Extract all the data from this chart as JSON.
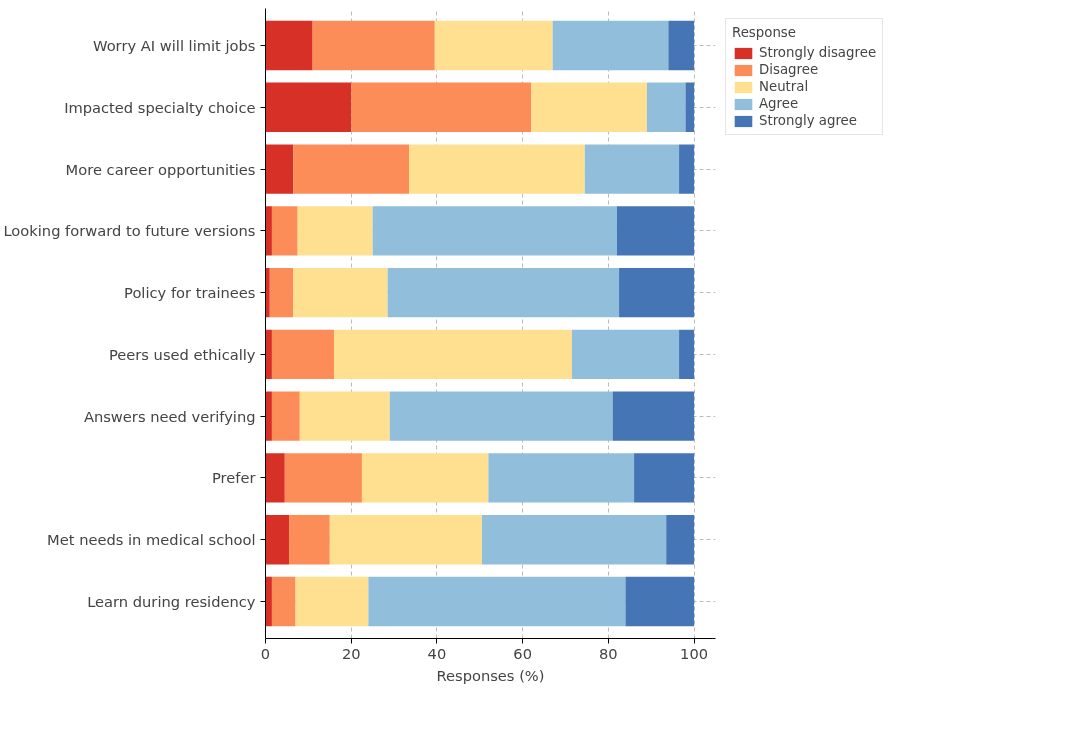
{
  "chart_data": {
    "type": "bar",
    "orientation": "horizontal",
    "stacked": true,
    "xlabel": "Responses (%)",
    "legend_title": "Response",
    "legend": "top right",
    "grid": true,
    "categories": [
      "Worry AI will limit jobs",
      "Impacted specialty choice",
      "More career opportunities",
      "Looking forward to future versions",
      "Policy for trainees",
      "Peers used ethically",
      "Answers need verifying",
      "Prefer",
      "Met needs in medical school",
      "Learn during residency"
    ],
    "xlim": [
      0,
      105
    ],
    "xticks": [
      0,
      20,
      40,
      60,
      80,
      100
    ],
    "series": [
      {
        "name": "Strongly disagree",
        "color": "#d73027",
        "values": [
          11,
          20,
          6.5,
          1.5,
          1,
          1.5,
          1.5,
          4.5,
          5.5,
          1.5
        ]
      },
      {
        "name": "Disagree",
        "color": "#fc8d59",
        "values": [
          28.5,
          42,
          27,
          6,
          5.5,
          14.5,
          6.5,
          18,
          9.5,
          5.5
        ]
      },
      {
        "name": "Neutral",
        "color": "#fee090",
        "values": [
          27.5,
          27,
          41,
          17.5,
          22,
          55.5,
          21,
          29.5,
          35.5,
          17
        ]
      },
      {
        "name": "Agree",
        "color": "#91bfdb",
        "values": [
          27,
          9,
          22,
          57,
          54,
          25,
          52,
          34,
          43,
          60
        ]
      },
      {
        "name": "Strongly agree",
        "color": "#4575b4",
        "values": [
          6,
          2,
          3.5,
          18,
          17.5,
          3.5,
          19,
          14,
          6.5,
          16
        ]
      }
    ]
  }
}
